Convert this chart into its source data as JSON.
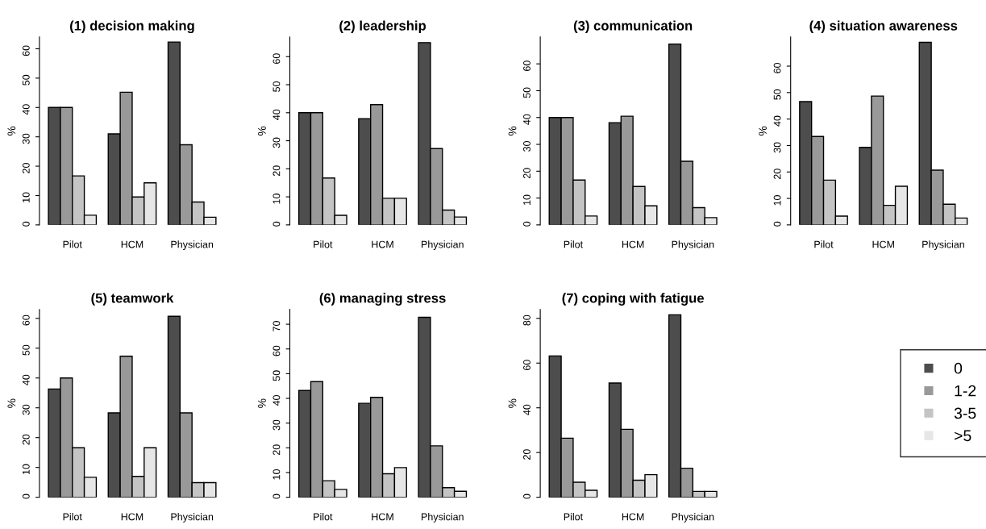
{
  "chart_data": [
    {
      "type": "bar",
      "title": "(1) decision making",
      "ylabel": "%",
      "categories": [
        "Pilot",
        "HCM",
        "Physician"
      ],
      "ylim": [
        0,
        64
      ],
      "yticks": [
        0,
        10,
        20,
        30,
        40,
        50,
        60
      ],
      "grid": false,
      "series": [
        {
          "color": "#4d4d4d",
          "values": [
            40,
            31,
            62.3
          ]
        },
        {
          "color": "#999999",
          "values": [
            40,
            45.2,
            27.3
          ]
        },
        {
          "color": "#c4c4c4",
          "values": [
            16.7,
            9.5,
            7.8
          ]
        },
        {
          "color": "#e6e6e6",
          "values": [
            3.3,
            14.3,
            2.6
          ]
        }
      ]
    },
    {
      "type": "bar",
      "title": "(2) leadership",
      "ylabel": "%",
      "categories": [
        "Pilot",
        "HCM",
        "Physician"
      ],
      "ylim": [
        0,
        67
      ],
      "yticks": [
        0,
        10,
        20,
        30,
        40,
        50,
        60
      ],
      "grid": false,
      "series": [
        {
          "color": "#4d4d4d",
          "values": [
            40,
            37.9,
            65
          ]
        },
        {
          "color": "#999999",
          "values": [
            40,
            42.9,
            27.2
          ]
        },
        {
          "color": "#c4c4c4",
          "values": [
            16.7,
            9.5,
            5.3
          ]
        },
        {
          "color": "#e6e6e6",
          "values": [
            3.4,
            9.5,
            2.8
          ]
        }
      ]
    },
    {
      "type": "bar",
      "title": "(3) communication",
      "ylabel": "%",
      "categories": [
        "Pilot",
        "HCM",
        "Physician"
      ],
      "ylim": [
        0,
        70
      ],
      "yticks": [
        0,
        10,
        20,
        30,
        40,
        50,
        60
      ],
      "grid": false,
      "series": [
        {
          "color": "#4d4d4d",
          "values": [
            40,
            38.1,
            67.4
          ]
        },
        {
          "color": "#999999",
          "values": [
            40,
            40.5,
            23.7
          ]
        },
        {
          "color": "#c4c4c4",
          "values": [
            16.7,
            14.3,
            6.4
          ]
        },
        {
          "color": "#e6e6e6",
          "values": [
            3.3,
            7.1,
            2.7
          ]
        }
      ]
    },
    {
      "type": "bar",
      "title": "(4) situation awareness",
      "ylabel": "%",
      "categories": [
        "Pilot",
        "HCM",
        "Physician"
      ],
      "ylim": [
        0,
        71
      ],
      "yticks": [
        0,
        10,
        20,
        30,
        40,
        50,
        60
      ],
      "grid": false,
      "series": [
        {
          "color": "#4d4d4d",
          "values": [
            46.6,
            29.3,
            69
          ]
        },
        {
          "color": "#999999",
          "values": [
            33.4,
            48.7,
            20.7
          ]
        },
        {
          "color": "#c4c4c4",
          "values": [
            16.9,
            7.4,
            7.8
          ]
        },
        {
          "color": "#e6e6e6",
          "values": [
            3.3,
            14.6,
            2.6
          ]
        }
      ]
    },
    {
      "type": "bar",
      "title": "(5) teamwork",
      "ylabel": "%",
      "categories": [
        "Pilot",
        "HCM",
        "Physician"
      ],
      "ylim": [
        0,
        63
      ],
      "yticks": [
        0,
        10,
        20,
        30,
        40,
        50,
        60
      ],
      "grid": false,
      "series": [
        {
          "color": "#4d4d4d",
          "values": [
            36.3,
            28.3,
            60.7
          ]
        },
        {
          "color": "#999999",
          "values": [
            40,
            47.3,
            28.3
          ]
        },
        {
          "color": "#c4c4c4",
          "values": [
            16.6,
            7,
            4.9
          ]
        },
        {
          "color": "#e6e6e6",
          "values": [
            6.7,
            16.6,
            4.9
          ]
        }
      ]
    },
    {
      "type": "bar",
      "title": "(6) managing stress",
      "ylabel": "%",
      "categories": [
        "Pilot",
        "HCM",
        "Physician"
      ],
      "ylim": [
        0,
        76
      ],
      "yticks": [
        0,
        10,
        20,
        30,
        40,
        50,
        60,
        70
      ],
      "grid": false,
      "series": [
        {
          "color": "#4d4d4d",
          "values": [
            43.2,
            38,
            72.8
          ]
        },
        {
          "color": "#999999",
          "values": [
            46.8,
            40.4,
            20.8
          ]
        },
        {
          "color": "#c4c4c4",
          "values": [
            6.7,
            9.5,
            3.9
          ]
        },
        {
          "color": "#e6e6e6",
          "values": [
            3.2,
            12,
            2.4
          ]
        }
      ]
    },
    {
      "type": "bar",
      "title": "(7) coping with fatigue",
      "ylabel": "%",
      "categories": [
        "Pilot",
        "HCM",
        "Physician"
      ],
      "ylim": [
        0,
        84
      ],
      "yticks": [
        0,
        20,
        40,
        60,
        80
      ],
      "grid": false,
      "legend": "right",
      "series": [
        {
          "name": "0",
          "color": "#4d4d4d",
          "values": [
            63.2,
            51.1,
            81.6
          ]
        },
        {
          "name": "1-2",
          "color": "#999999",
          "values": [
            26.4,
            30.4,
            13
          ]
        },
        {
          "name": "3-5",
          "color": "#c4c4c4",
          "values": [
            6.7,
            7.6,
            2.6
          ]
        },
        {
          "name": ">5",
          "color": "#e6e6e6",
          "values": [
            3.1,
            10.1,
            2.6
          ]
        }
      ]
    }
  ]
}
